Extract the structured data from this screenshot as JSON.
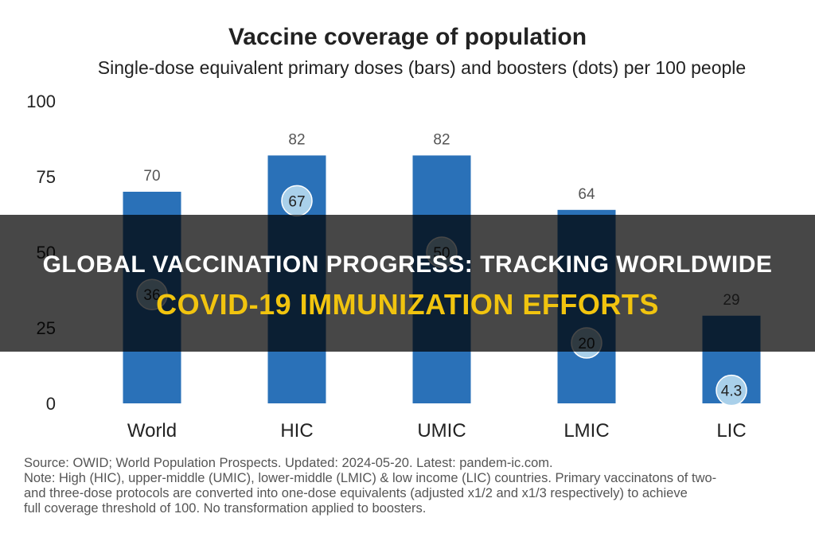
{
  "chart_data": {
    "type": "bar",
    "title": "Vaccine coverage of population",
    "subtitle": "Single-dose equivalent primary doses (bars) and boosters (dots) per 100 people",
    "categories": [
      "World",
      "HIC",
      "UMIC",
      "LMIC",
      "LIC"
    ],
    "series": [
      {
        "values": [
          70,
          82,
          82,
          64,
          29
        ],
        "labels": [
          "70",
          "82",
          "82",
          "64",
          "29"
        ],
        "mark": "bar"
      },
      {
        "values": [
          36,
          67,
          50,
          20,
          4.3
        ],
        "labels": [
          "36",
          "67",
          "50",
          "20",
          "4.3"
        ],
        "mark": "dot"
      }
    ],
    "y_ticks": [
      "0",
      "25",
      "50",
      "75",
      "100"
    ],
    "ylim": [
      0,
      100
    ],
    "grid": false,
    "colors": {
      "bar": "#2a71b8",
      "dot": "#a9d0ea",
      "dot_stroke": "#ffffff"
    }
  },
  "notes": {
    "source": "Source: OWID; World Population Prospects. Updated: 2024-05-20. Latest: pandem-ic.com.",
    "note1": "Note: High (HIC), upper-middle (UMIC), lower-middle (LMIC) & low income (LIC) countries. Primary vaccinatons of two-",
    "note2": "and three-dose protocols are converted into one-dose equivalents (adjusted x1/2 and x1/3 respectively) to achieve",
    "note3": "full coverage threshold of 100. No transformation applied to boosters."
  },
  "overlay": {
    "line1": "GLOBAL VACCINATION PROGRESS: TRACKING WORLDWIDE",
    "line2": "COVID-19 IMMUNIZATION EFFORTS",
    "band_color": "#000000",
    "line1_color": "#ffffff",
    "line2_color": "#f1c40f"
  }
}
